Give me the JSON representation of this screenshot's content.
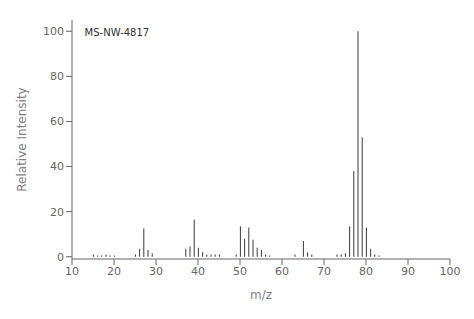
{
  "chart_data": {
    "type": "bar",
    "xlabel": "m/z",
    "ylabel": "Relative Intensity",
    "xlim": [
      10,
      100
    ],
    "ylim": [
      -1,
      105
    ],
    "xticks": [
      10,
      20,
      30,
      40,
      50,
      60,
      70,
      80,
      90,
      100
    ],
    "yticks": [
      0,
      20,
      40,
      60,
      80,
      100
    ],
    "x": [
      15,
      16,
      17,
      18,
      19,
      20,
      25,
      26,
      27,
      28,
      29,
      37,
      38,
      39,
      40,
      41,
      42,
      43,
      44,
      45,
      49,
      50,
      51,
      52,
      53,
      54,
      55,
      56,
      57,
      63,
      65,
      66,
      67,
      73,
      74,
      75,
      76,
      77,
      78,
      79,
      80,
      81,
      82,
      83
    ],
    "values": [
      1.0,
      0.5,
      0.5,
      1.0,
      0.5,
      0.5,
      1.0,
      3.5,
      12.5,
      3.0,
      1.5,
      3.5,
      4.5,
      16.5,
      4.0,
      2.0,
      1.0,
      1.0,
      1.0,
      1.0,
      1.0,
      13.5,
      8.0,
      13.0,
      7.5,
      4.0,
      3.0,
      1.0,
      0.5,
      1.0,
      7.0,
      2.0,
      1.0,
      1.0,
      1.0,
      1.5,
      13.5,
      38.0,
      100.0,
      53.0,
      13.0,
      3.5,
      1.0,
      0.5
    ],
    "color": "#3a3a3a",
    "grid": false,
    "annotations": [
      {
        "text": "MS-NW-4817",
        "x": 13,
        "y": 101
      }
    ]
  }
}
